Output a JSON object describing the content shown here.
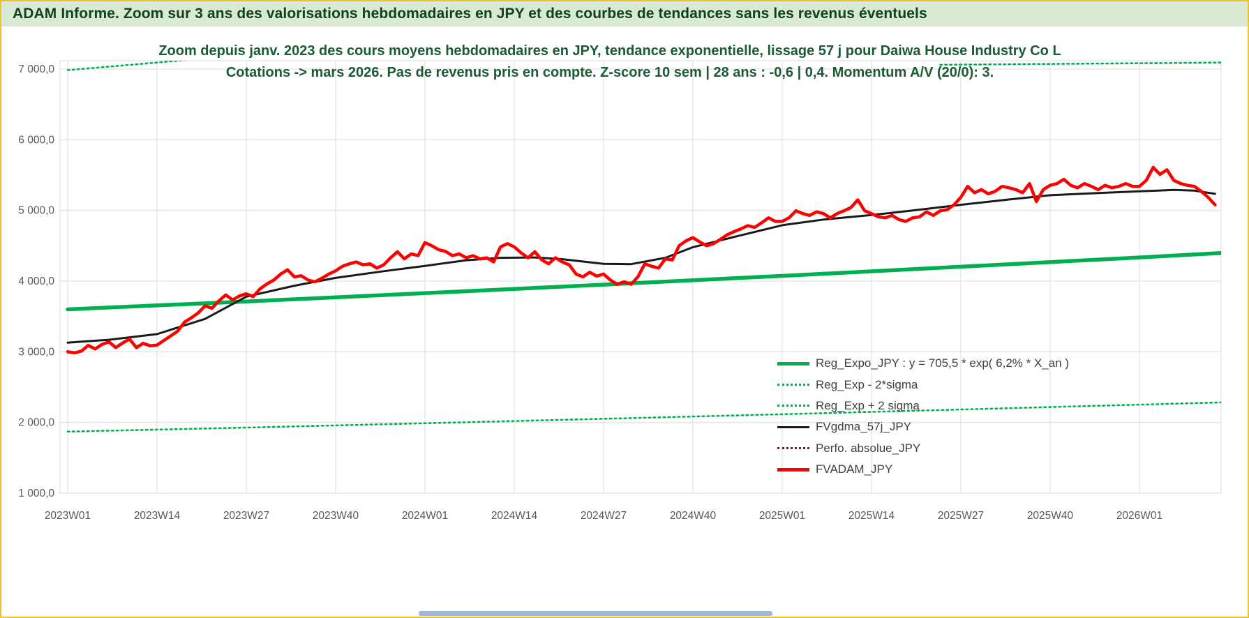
{
  "banner": {
    "text": "ADAM Informe. Zoom sur 3 ans des valorisations hebdomadaires en JPY et des courbes de tendances sans les revenus éventuels"
  },
  "colors": {
    "banner_bg": "#D9EAD3",
    "banner_text": "#10431D",
    "title_text": "#1B5B33",
    "green": "#00B050",
    "red": "#FF0000",
    "dark_red": "#C00000",
    "black": "#1A1A1A",
    "grid": "#DCDCDC",
    "axis_text": "#595959",
    "page_border": "#EFC132",
    "scrollbar": "#9FB6D8"
  },
  "chart_data": {
    "type": "line",
    "title_lines": [
      "Zoom depuis janv. 2023 des cours moyens hebdomadaires en JPY, tendance exponentielle, lissage 57 j pour Daiwa House Industry Co L",
      "Cotations -> mars 2026. Pas de revenus pris en compte. Z-score 10 sem | 28 ans : -0,6 | 0,4. Momentum A/V (20/0): 3."
    ],
    "x_axis": {
      "unit": "ISO week",
      "weeks_total": 168,
      "tick_week_interval": 13,
      "tick_labels": [
        "2023W01",
        "2023W14",
        "2023W27",
        "2023W40",
        "2024W01",
        "2024W14",
        "2024W27",
        "2024W40",
        "2025W01",
        "2025W14",
        "2025W27",
        "2025W40",
        "2026W01"
      ]
    },
    "y_axis": {
      "min": 1000,
      "max": 7120,
      "ticks": [
        1000,
        2000,
        3000,
        4000,
        5000,
        6000,
        7000
      ],
      "tick_labels": [
        "1 000,0",
        "2 000,0",
        "3 000,0",
        "4 000,0",
        "5 000,0",
        "6 000,0",
        "7 000,0"
      ],
      "grid": true
    },
    "legend_position": "inside-right",
    "series": [
      {
        "name": "Reg_Expo_JPY",
        "legend": "Reg_Expo_JPY : y = 705,5 * exp( 6,2% *  X_an )",
        "style": "solid",
        "color_key": "green",
        "width": 5.5,
        "points": [
          [
            0,
            3600
          ],
          [
            26,
            3712
          ],
          [
            52,
            3829
          ],
          [
            78,
            3950
          ],
          [
            104,
            4074
          ],
          [
            130,
            4203
          ],
          [
            156,
            4335
          ],
          [
            168,
            4398
          ]
        ]
      },
      {
        "name": "Reg_Exp - 2*sigma",
        "legend": "Reg_Exp - 2*sigma",
        "style": "dotted",
        "color_key": "green",
        "width": 2.6,
        "points": [
          [
            0,
            1870
          ],
          [
            26,
            1928
          ],
          [
            52,
            1989
          ],
          [
            78,
            2052
          ],
          [
            104,
            2116
          ],
          [
            130,
            2183
          ],
          [
            156,
            2252
          ],
          [
            168,
            2284
          ]
        ]
      },
      {
        "name": "Reg_Exp + 2 sigma",
        "legend": "Reg_Exp + 2 sigma",
        "style": "dotted",
        "color_key": "green",
        "width": 2.6,
        "points": [
          [
            0,
            6985
          ],
          [
            8,
            7050
          ],
          [
            16,
            7117
          ],
          [
            24,
            7185
          ],
          [
            30,
            7240
          ]
        ],
        "extra_visible_segment": [
          [
            127,
            7060
          ],
          [
            168,
            7092
          ]
        ]
      },
      {
        "name": "FVgdma_57j_JPY",
        "legend": "FVgdma_57j_JPY",
        "style": "solid",
        "color_key": "black",
        "width": 3,
        "points": [
          [
            0,
            3130
          ],
          [
            6,
            3170
          ],
          [
            13,
            3250
          ],
          [
            20,
            3465
          ],
          [
            26,
            3780
          ],
          [
            33,
            3935
          ],
          [
            39,
            4045
          ],
          [
            46,
            4140
          ],
          [
            52,
            4215
          ],
          [
            58,
            4295
          ],
          [
            63,
            4330
          ],
          [
            68,
            4335
          ],
          [
            72,
            4310
          ],
          [
            78,
            4245
          ],
          [
            82,
            4240
          ],
          [
            87,
            4330
          ],
          [
            91,
            4480
          ],
          [
            97,
            4625
          ],
          [
            104,
            4790
          ],
          [
            110,
            4870
          ],
          [
            117,
            4935
          ],
          [
            123,
            5000
          ],
          [
            130,
            5080
          ],
          [
            137,
            5155
          ],
          [
            143,
            5215
          ],
          [
            150,
            5245
          ],
          [
            156,
            5270
          ],
          [
            161,
            5290
          ],
          [
            164,
            5280
          ],
          [
            167,
            5235
          ]
        ]
      },
      {
        "name": "Perfo. absolue_JPY",
        "legend": "Perfo. absolue_JPY",
        "style": "dotted",
        "color_key": "dark_red",
        "width": 2.6,
        "visible_in_plot": false,
        "points": []
      },
      {
        "name": "FVADAM_JPY",
        "legend": "FVADAM_JPY",
        "style": "solid",
        "color_key": "red",
        "width": 4.5,
        "values_weekly": [
          3000,
          2985,
          3010,
          3090,
          3040,
          3105,
          3140,
          3060,
          3125,
          3180,
          3060,
          3120,
          3085,
          3095,
          3160,
          3225,
          3290,
          3420,
          3480,
          3550,
          3650,
          3615,
          3720,
          3805,
          3735,
          3790,
          3820,
          3780,
          3890,
          3960,
          4015,
          4100,
          4160,
          4060,
          4075,
          4015,
          3990,
          4040,
          4100,
          4145,
          4210,
          4245,
          4270,
          4230,
          4245,
          4185,
          4230,
          4330,
          4415,
          4315,
          4385,
          4360,
          4545,
          4500,
          4445,
          4420,
          4360,
          4385,
          4330,
          4360,
          4315,
          4330,
          4270,
          4485,
          4530,
          4485,
          4400,
          4330,
          4415,
          4300,
          4245,
          4330,
          4270,
          4230,
          4100,
          4060,
          4125,
          4070,
          4100,
          4015,
          3955,
          3990,
          3955,
          4060,
          4245,
          4210,
          4185,
          4315,
          4300,
          4500,
          4570,
          4615,
          4555,
          4500,
          4530,
          4590,
          4655,
          4700,
          4740,
          4785,
          4760,
          4825,
          4895,
          4845,
          4845,
          4895,
          4995,
          4955,
          4930,
          4980,
          4955,
          4895,
          4955,
          4995,
          5040,
          5150,
          4995,
          4955,
          4910,
          4895,
          4930,
          4870,
          4845,
          4895,
          4910,
          4980,
          4930,
          4995,
          5010,
          5080,
          5185,
          5340,
          5250,
          5295,
          5235,
          5270,
          5340,
          5320,
          5295,
          5250,
          5380,
          5125,
          5295,
          5355,
          5380,
          5440,
          5355,
          5320,
          5380,
          5340,
          5295,
          5355,
          5320,
          5340,
          5380,
          5340,
          5340,
          5425,
          5610,
          5510,
          5575,
          5425,
          5380,
          5355,
          5340,
          5270,
          5185,
          5080
        ]
      }
    ]
  }
}
